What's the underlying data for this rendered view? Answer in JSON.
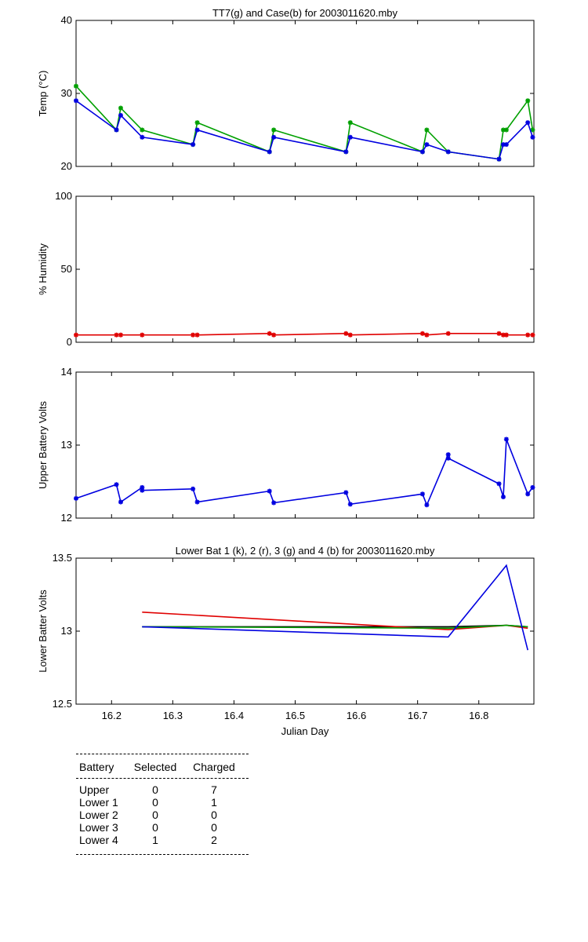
{
  "chart_data": [
    {
      "type": "line",
      "title": "TT7(g) and Case(b) for 2003011620.mby",
      "xlabel": "",
      "ylabel": "Temp  (°C)",
      "xlim": [
        16.142,
        16.89
      ],
      "ylim": [
        20,
        40
      ],
      "yticks": [
        "20",
        "30",
        "40"
      ],
      "xticks": [],
      "grid": false,
      "series": [
        {
          "color": "#00a000",
          "marker": "*",
          "x": [
            16.142,
            16.208,
            16.215,
            16.25,
            16.333,
            16.34,
            16.458,
            16.465,
            16.583,
            16.59,
            16.708,
            16.715,
            16.75,
            16.833,
            16.84,
            16.845,
            16.88,
            16.888
          ],
          "y": [
            31,
            25,
            28,
            25,
            23,
            26,
            22,
            25,
            22,
            26,
            22,
            25,
            22,
            21,
            25,
            25,
            29,
            25
          ]
        },
        {
          "color": "#0000e0",
          "marker": "*",
          "x": [
            16.142,
            16.208,
            16.215,
            16.25,
            16.333,
            16.34,
            16.458,
            16.465,
            16.583,
            16.59,
            16.708,
            16.715,
            16.75,
            16.833,
            16.84,
            16.845,
            16.88,
            16.888
          ],
          "y": [
            29,
            25,
            27,
            24,
            23,
            25,
            22,
            24,
            22,
            24,
            22,
            23,
            22,
            21,
            23,
            23,
            26,
            24
          ]
        }
      ]
    },
    {
      "type": "line",
      "title": "",
      "xlabel": "",
      "ylabel": "% Humidity",
      "xlim": [
        16.142,
        16.89
      ],
      "ylim": [
        0,
        100
      ],
      "yticks": [
        "0",
        "50",
        "100"
      ],
      "xticks": [],
      "grid": false,
      "series": [
        {
          "color": "#e00000",
          "marker": "*",
          "x": [
            16.142,
            16.208,
            16.215,
            16.25,
            16.333,
            16.34,
            16.458,
            16.465,
            16.583,
            16.59,
            16.708,
            16.715,
            16.75,
            16.833,
            16.84,
            16.845,
            16.88,
            16.888
          ],
          "y": [
            5,
            5,
            5,
            5,
            5,
            5,
            6,
            5,
            6,
            5,
            6,
            5,
            6,
            6,
            5,
            5,
            5,
            5
          ]
        }
      ]
    },
    {
      "type": "line",
      "title": "",
      "xlabel": "",
      "ylabel": "Upper Battery Volts",
      "xlim": [
        16.142,
        16.89
      ],
      "ylim": [
        12,
        14
      ],
      "yticks": [
        "12",
        "13",
        "14"
      ],
      "xticks": [],
      "grid": false,
      "series": [
        {
          "color": "#0000e0",
          "marker": "*",
          "x": [
            16.142,
            16.208,
            16.215,
            16.25,
            16.25,
            16.333,
            16.34,
            16.458,
            16.465,
            16.583,
            16.59,
            16.708,
            16.715,
            16.75,
            16.75,
            16.833,
            16.84,
            16.845,
            16.88,
            16.888
          ],
          "y": [
            12.27,
            12.46,
            12.22,
            12.42,
            12.38,
            12.4,
            12.22,
            12.37,
            12.21,
            12.35,
            12.19,
            12.33,
            12.18,
            12.87,
            12.82,
            12.47,
            12.29,
            13.08,
            12.33,
            12.42
          ]
        }
      ]
    },
    {
      "type": "line",
      "title": "Lower Bat 1 (k), 2 (r), 3 (g) and 4 (b) for 2003011620.mby",
      "xlabel": "Julian Day",
      "ylabel": "Lower Batter Volts",
      "xlim": [
        16.142,
        16.89
      ],
      "ylim": [
        12.5,
        13.5
      ],
      "yticks": [
        "12.5",
        "13",
        "13.5"
      ],
      "xticks": [
        "16.2",
        "16.3",
        "16.4",
        "16.5",
        "16.6",
        "16.7",
        "16.8"
      ],
      "grid": false,
      "series": [
        {
          "color": "#000000",
          "marker": "",
          "x": [
            16.25,
            16.75,
            16.845,
            16.88
          ],
          "y": [
            13.03,
            13.03,
            13.04,
            13.03
          ]
        },
        {
          "color": "#e00000",
          "marker": "",
          "x": [
            16.25,
            16.75,
            16.845,
            16.88
          ],
          "y": [
            13.13,
            13.01,
            13.04,
            13.02
          ]
        },
        {
          "color": "#00a000",
          "marker": "",
          "x": [
            16.25,
            16.75,
            16.845,
            16.88
          ],
          "y": [
            13.03,
            13.02,
            13.04,
            13.03
          ]
        },
        {
          "color": "#0000e0",
          "marker": "",
          "x": [
            16.25,
            16.75,
            16.845,
            16.88
          ],
          "y": [
            13.03,
            12.96,
            13.45,
            12.87
          ]
        }
      ]
    }
  ],
  "battery_table": {
    "headers": [
      "Battery",
      "Selected",
      "Charged"
    ],
    "rows": [
      [
        "Upper",
        "0",
        "7"
      ],
      [
        "Lower 1",
        "0",
        "1"
      ],
      [
        "Lower 2",
        "0",
        "0"
      ],
      [
        "Lower 3",
        "0",
        "0"
      ],
      [
        "Lower 4",
        "1",
        "2"
      ]
    ]
  }
}
